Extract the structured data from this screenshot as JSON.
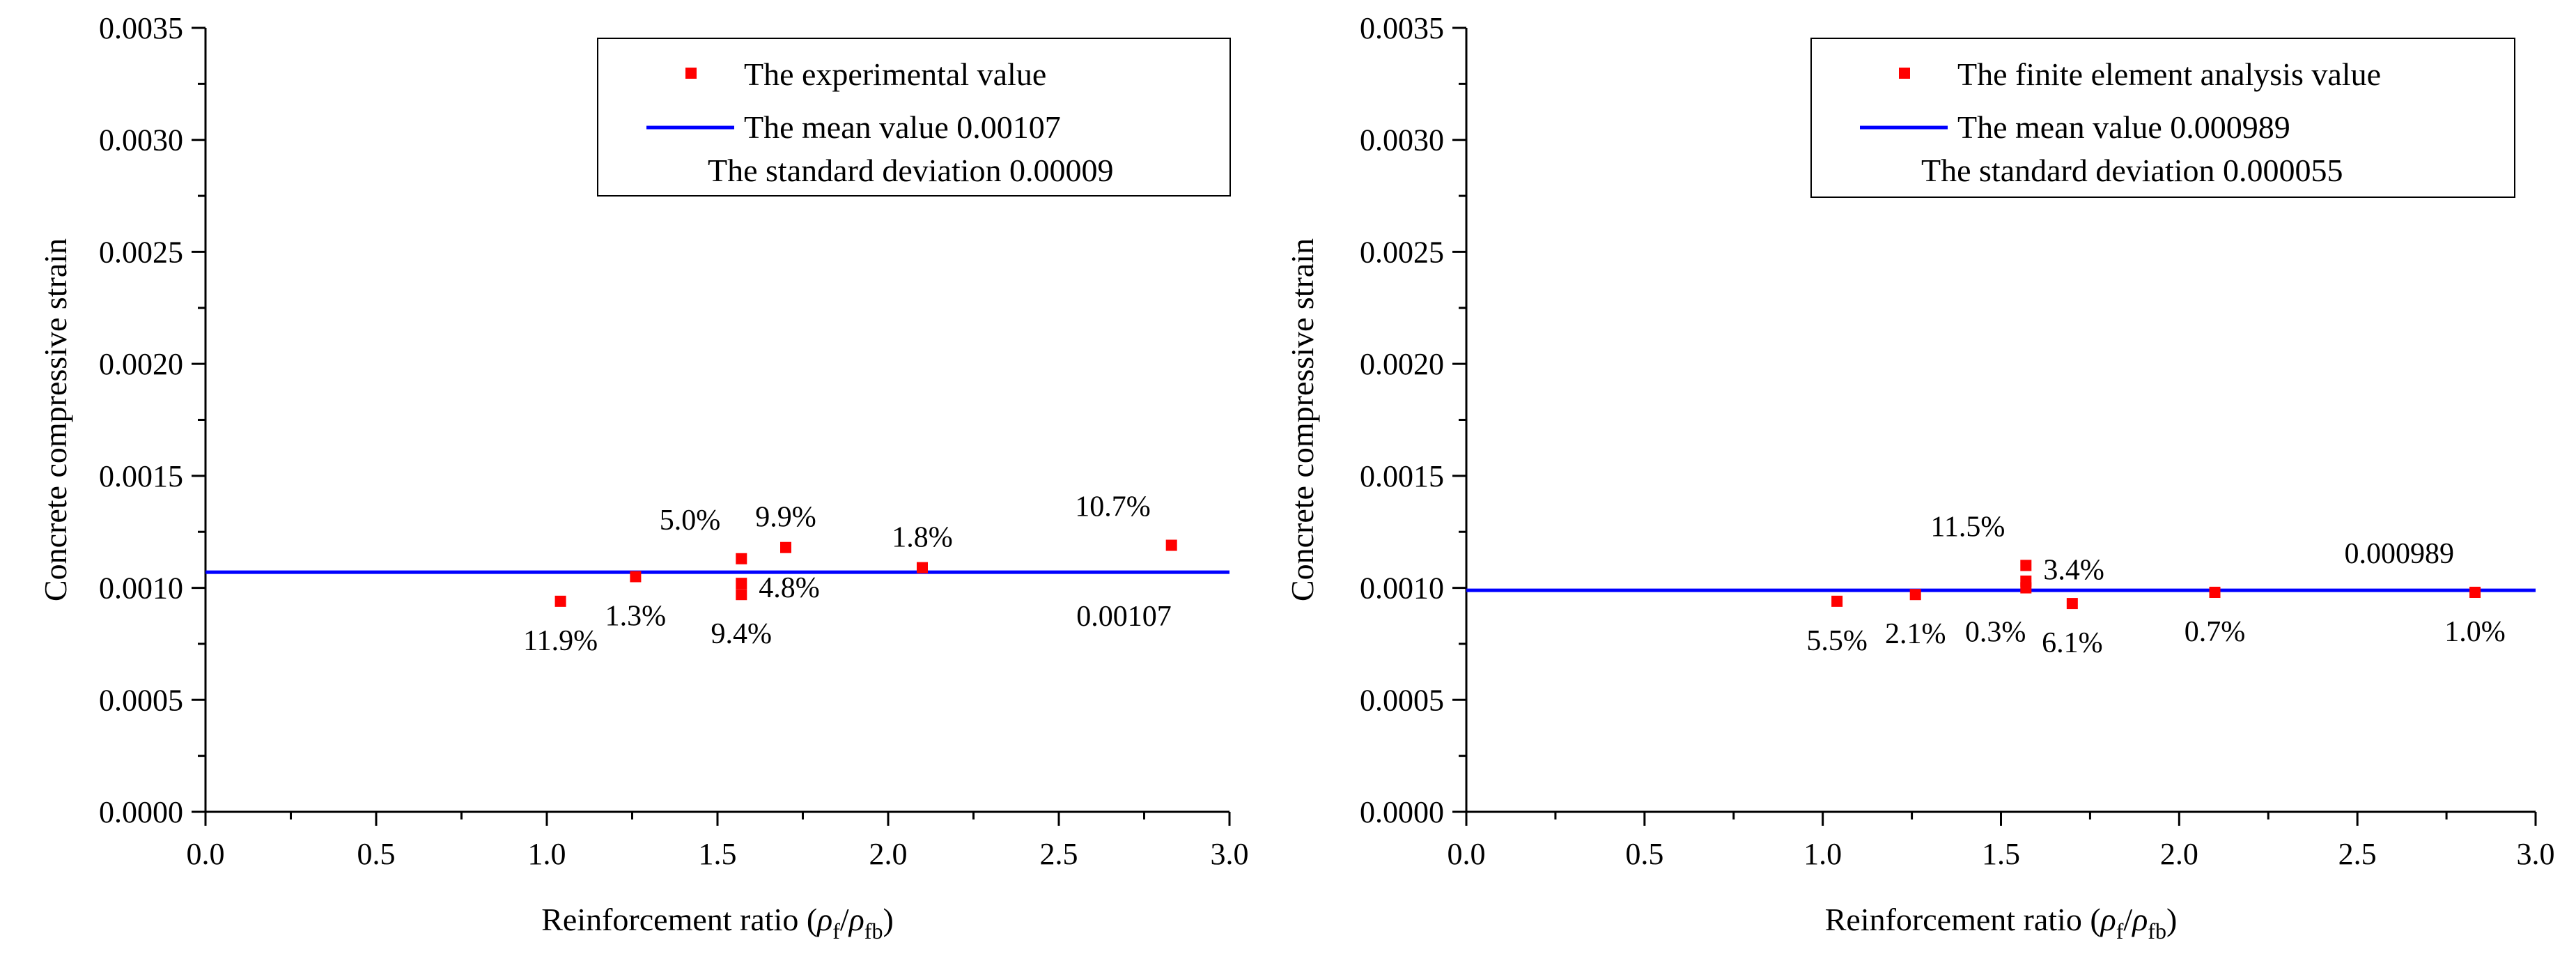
{
  "chart_data": [
    {
      "type": "scatter",
      "xlabel_main": "Reinforcement ratio (",
      "xlabel_rho": "ρ",
      "xlabel_sub1": "f",
      "xlabel_slash": "/",
      "xlabel_sub2": "fb",
      "xlabel_close": ")",
      "ylabel": "Concrete compressive strain",
      "xlim": [
        0.0,
        3.0
      ],
      "ylim": [
        0.0,
        0.0035
      ],
      "xticks": [
        "0.0",
        "0.5",
        "1.0",
        "1.5",
        "2.0",
        "2.5",
        "3.0"
      ],
      "yticks": [
        "0.0000",
        "0.0005",
        "0.0010",
        "0.0015",
        "0.0020",
        "0.0025",
        "0.0030",
        "0.0035"
      ],
      "series": [
        {
          "name": "The experimental value",
          "color": "#ff0000",
          "points": [
            {
              "x": 1.04,
              "y": 0.00094
            },
            {
              "x": 1.26,
              "y": 0.00105
            },
            {
              "x": 1.57,
              "y": 0.00113
            },
            {
              "x": 1.57,
              "y": 0.00102
            },
            {
              "x": 1.57,
              "y": 0.00097
            },
            {
              "x": 1.7,
              "y": 0.00118
            },
            {
              "x": 2.1,
              "y": 0.00109
            },
            {
              "x": 2.83,
              "y": 0.00119
            }
          ]
        }
      ],
      "mean_line": {
        "value": 0.00107,
        "color": "#0000ff",
        "label": "The mean value 0.00107"
      },
      "legend": {
        "position": "top-right",
        "scatter_label": "The experimental value",
        "line_label": "The mean value 0.00107",
        "std_label": "The standard deviation 0.00009"
      },
      "annotations": [
        {
          "text": "11.9%",
          "x": 1.04,
          "y": 0.00094,
          "pos": "below"
        },
        {
          "text": "1.3%",
          "x": 1.26,
          "y": 0.00105,
          "pos": "below"
        },
        {
          "text": "5.0%",
          "x": 1.57,
          "y": 0.00113,
          "pos": "above-left"
        },
        {
          "text": "4.8%",
          "x": 1.57,
          "y": 0.00102,
          "pos": "right"
        },
        {
          "text": "9.4%",
          "x": 1.57,
          "y": 0.00097,
          "pos": "below"
        },
        {
          "text": "9.9%",
          "x": 1.7,
          "y": 0.00118,
          "pos": "above"
        },
        {
          "text": "1.8%",
          "x": 2.1,
          "y": 0.00109,
          "pos": "above"
        },
        {
          "text": "10.7%",
          "x": 2.83,
          "y": 0.00119,
          "pos": "above-left"
        },
        {
          "text": "0.00107",
          "x": 2.83,
          "y": 0.00107,
          "pos": "below-left"
        }
      ]
    },
    {
      "type": "scatter",
      "xlabel_main": "Reinforcement ratio (",
      "xlabel_rho": "ρ",
      "xlabel_sub1": "f",
      "xlabel_slash": "/",
      "xlabel_sub2": "fb",
      "xlabel_close": ")",
      "ylabel": "Concrete compressive strain",
      "xlim": [
        0.0,
        3.0
      ],
      "ylim": [
        0.0,
        0.0035
      ],
      "xticks": [
        "0.0",
        "0.5",
        "1.0",
        "1.5",
        "2.0",
        "2.5",
        "3.0"
      ],
      "yticks": [
        "0.0000",
        "0.0005",
        "0.0010",
        "0.0015",
        "0.0020",
        "0.0025",
        "0.0030",
        "0.0035"
      ],
      "series": [
        {
          "name": "The finite element analysis value",
          "color": "#ff0000",
          "points": [
            {
              "x": 1.04,
              "y": 0.00094
            },
            {
              "x": 1.26,
              "y": 0.00097
            },
            {
              "x": 1.57,
              "y": 0.0011
            },
            {
              "x": 1.57,
              "y": 0.00103
            },
            {
              "x": 1.57,
              "y": 0.001
            },
            {
              "x": 1.7,
              "y": 0.00093
            },
            {
              "x": 2.1,
              "y": 0.00098
            },
            {
              "x": 2.83,
              "y": 0.00098
            }
          ]
        }
      ],
      "mean_line": {
        "value": 0.000989,
        "color": "#0000ff",
        "label": "The mean value 0.000989"
      },
      "legend": {
        "position": "top-right",
        "scatter_label": "The finite element analysis value",
        "line_label": "The mean value 0.000989",
        "std_label": "The standard deviation 0.000055"
      },
      "annotations": [
        {
          "text": "5.5%",
          "x": 1.04,
          "y": 0.00094,
          "pos": "below"
        },
        {
          "text": "2.1%",
          "x": 1.26,
          "y": 0.00097,
          "pos": "below"
        },
        {
          "text": "11.5%",
          "x": 1.57,
          "y": 0.0011,
          "pos": "above-left"
        },
        {
          "text": "3.4%",
          "x": 1.57,
          "y": 0.0011,
          "pos": "right"
        },
        {
          "text": "0.3%",
          "x": 1.57,
          "y": 0.001,
          "pos": "below-left"
        },
        {
          "text": "6.1%",
          "x": 1.7,
          "y": 0.00093,
          "pos": "below"
        },
        {
          "text": "0.7%",
          "x": 2.1,
          "y": 0.00098,
          "pos": "below"
        },
        {
          "text": "0.000989",
          "x": 2.83,
          "y": 0.00098,
          "pos": "above-left"
        },
        {
          "text": "1.0%",
          "x": 2.83,
          "y": 0.00098,
          "pos": "below"
        }
      ]
    }
  ]
}
